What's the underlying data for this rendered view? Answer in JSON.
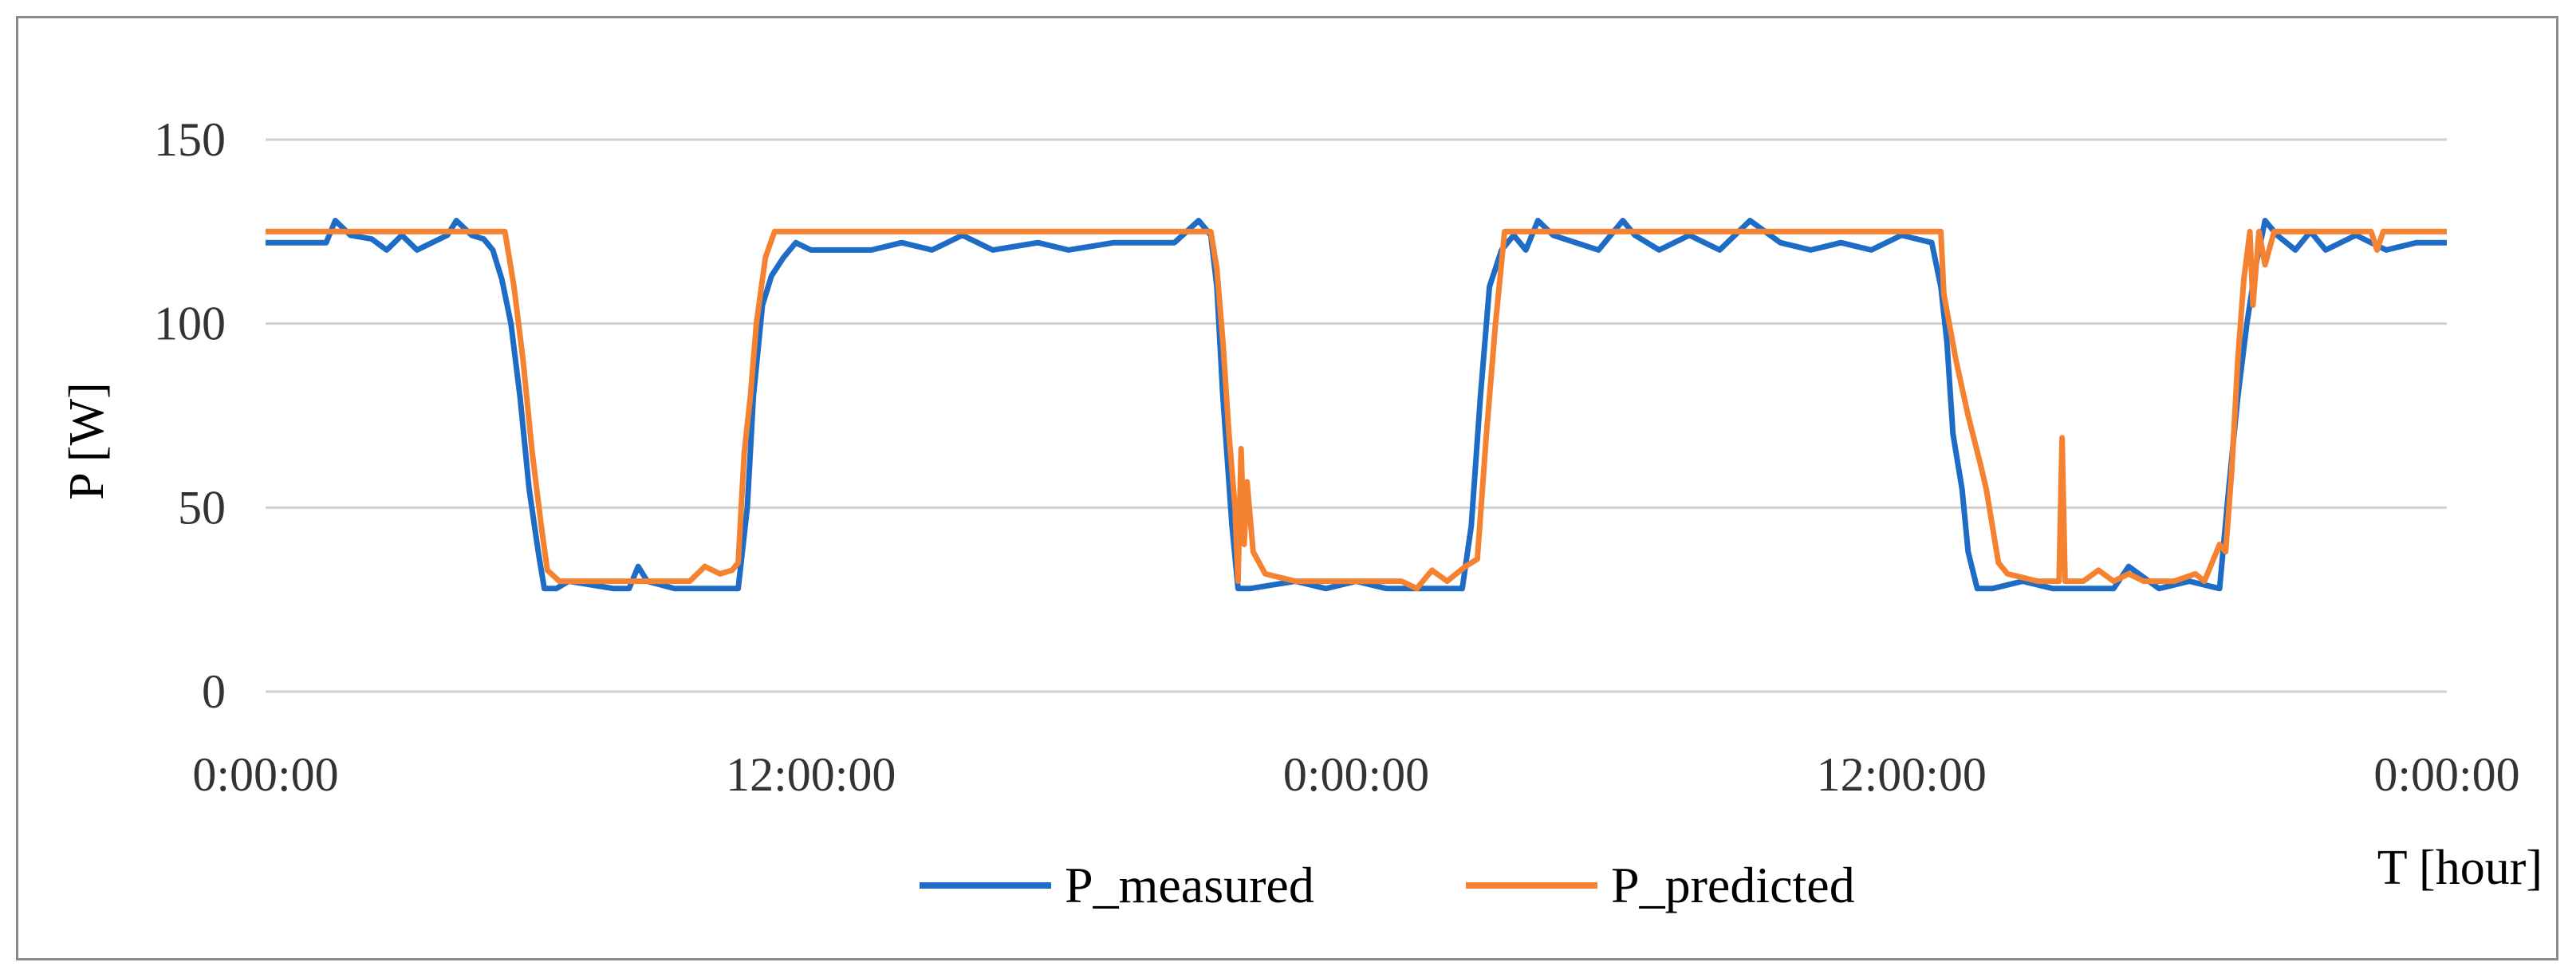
{
  "chart_data": {
    "type": "line",
    "title": "",
    "xlabel": "T [hour]",
    "ylabel": "P [W]",
    "ylim": [
      0,
      150
    ],
    "yticks": [
      "0",
      "50",
      "100",
      "150"
    ],
    "xticks": [
      "0:00:00",
      "12:00:00",
      "0:00:00",
      "12:00:00",
      "0:00:00"
    ],
    "xlim_hours": [
      0,
      72
    ],
    "grid": "horizontal",
    "legend_position": "bottom",
    "series": [
      {
        "name": "P_measured",
        "color": "#1f6cc7",
        "points": [
          [
            0,
            122
          ],
          [
            2.0,
            122
          ],
          [
            2.3,
            128
          ],
          [
            2.8,
            124
          ],
          [
            3.5,
            123
          ],
          [
            4.0,
            120
          ],
          [
            4.5,
            124
          ],
          [
            5.0,
            120
          ],
          [
            6.0,
            124
          ],
          [
            6.3,
            128
          ],
          [
            6.8,
            124
          ],
          [
            7.2,
            123
          ],
          [
            7.5,
            120
          ],
          [
            7.8,
            112
          ],
          [
            8.1,
            100
          ],
          [
            8.4,
            80
          ],
          [
            8.7,
            55
          ],
          [
            9.0,
            38
          ],
          [
            9.2,
            28
          ],
          [
            9.6,
            28
          ],
          [
            10.0,
            30
          ],
          [
            11.5,
            28
          ],
          [
            12.0,
            28
          ],
          [
            12.3,
            34
          ],
          [
            12.6,
            30
          ],
          [
            13.5,
            28
          ],
          [
            15.0,
            28
          ],
          [
            15.6,
            28
          ],
          [
            15.9,
            50
          ],
          [
            16.1,
            80
          ],
          [
            16.4,
            105
          ],
          [
            16.7,
            113
          ],
          [
            17.1,
            118
          ],
          [
            17.5,
            122
          ],
          [
            18.0,
            120
          ],
          [
            20.0,
            120
          ],
          [
            21.0,
            122
          ],
          [
            22.0,
            120
          ],
          [
            23.0,
            124
          ],
          [
            24.0,
            120
          ],
          [
            25.5,
            122
          ],
          [
            26.5,
            120
          ],
          [
            28.0,
            122
          ],
          [
            30.0,
            122
          ],
          [
            30.8,
            128
          ],
          [
            31.2,
            124
          ],
          [
            31.4,
            110
          ],
          [
            31.6,
            80
          ],
          [
            31.9,
            45
          ],
          [
            32.1,
            28
          ],
          [
            32.5,
            28
          ],
          [
            34.0,
            30
          ],
          [
            35.0,
            28
          ],
          [
            36.0,
            30
          ],
          [
            37.0,
            28
          ],
          [
            38.0,
            28
          ],
          [
            39.5,
            28
          ],
          [
            39.8,
            45
          ],
          [
            40.1,
            80
          ],
          [
            40.4,
            110
          ],
          [
            40.8,
            120
          ],
          [
            41.2,
            124
          ],
          [
            41.6,
            120
          ],
          [
            42.0,
            128
          ],
          [
            42.5,
            124
          ],
          [
            44.0,
            120
          ],
          [
            44.8,
            128
          ],
          [
            45.2,
            124
          ],
          [
            46.0,
            120
          ],
          [
            47.0,
            124
          ],
          [
            48.0,
            120
          ],
          [
            49.0,
            128
          ],
          [
            50.0,
            122
          ],
          [
            51.0,
            120
          ],
          [
            52.0,
            122
          ],
          [
            53.0,
            120
          ],
          [
            54.0,
            124
          ],
          [
            55.0,
            122
          ],
          [
            55.3,
            110
          ],
          [
            55.5,
            95
          ],
          [
            55.7,
            70
          ],
          [
            56.0,
            55
          ],
          [
            56.2,
            38
          ],
          [
            56.5,
            28
          ],
          [
            57.0,
            28
          ],
          [
            58.0,
            30
          ],
          [
            59.0,
            28
          ],
          [
            60.0,
            28
          ],
          [
            61.0,
            28
          ],
          [
            61.5,
            34
          ],
          [
            62.5,
            28
          ],
          [
            63.5,
            30
          ],
          [
            64.5,
            28
          ],
          [
            64.8,
            55
          ],
          [
            65.1,
            80
          ],
          [
            65.4,
            100
          ],
          [
            65.7,
            116
          ],
          [
            66.0,
            128
          ],
          [
            66.4,
            124
          ],
          [
            67.0,
            120
          ],
          [
            67.5,
            125
          ],
          [
            68.0,
            120
          ],
          [
            69.0,
            124
          ],
          [
            70.0,
            120
          ],
          [
            71.0,
            122
          ],
          [
            72.0,
            122
          ]
        ]
      },
      {
        "name": "P_predicted",
        "color": "#f58231",
        "points": [
          [
            0,
            125
          ],
          [
            7.9,
            125
          ],
          [
            8.2,
            110
          ],
          [
            8.5,
            90
          ],
          [
            8.8,
            65
          ],
          [
            9.1,
            45
          ],
          [
            9.3,
            33
          ],
          [
            9.7,
            30
          ],
          [
            10.5,
            30
          ],
          [
            12.0,
            30
          ],
          [
            13.0,
            30
          ],
          [
            14.0,
            30
          ],
          [
            14.5,
            34
          ],
          [
            15.0,
            32
          ],
          [
            15.4,
            33
          ],
          [
            15.6,
            35
          ],
          [
            15.8,
            65
          ],
          [
            16.0,
            80
          ],
          [
            16.2,
            100
          ],
          [
            16.5,
            118
          ],
          [
            16.8,
            125
          ],
          [
            20.0,
            125
          ],
          [
            24.0,
            125
          ],
          [
            28.0,
            125
          ],
          [
            31.2,
            125
          ],
          [
            31.4,
            115
          ],
          [
            31.6,
            95
          ],
          [
            31.8,
            70
          ],
          [
            32.0,
            50
          ],
          [
            32.1,
            30
          ],
          [
            32.2,
            66
          ],
          [
            32.3,
            40
          ],
          [
            32.4,
            57
          ],
          [
            32.6,
            38
          ],
          [
            33.0,
            32
          ],
          [
            34.0,
            30
          ],
          [
            35.5,
            30
          ],
          [
            36.5,
            30
          ],
          [
            37.5,
            30
          ],
          [
            38.0,
            28
          ],
          [
            38.5,
            33
          ],
          [
            39.0,
            30
          ],
          [
            39.6,
            34
          ],
          [
            40.0,
            36
          ],
          [
            40.3,
            70
          ],
          [
            40.6,
            100
          ],
          [
            40.9,
            125
          ],
          [
            45.0,
            125
          ],
          [
            50.0,
            125
          ],
          [
            55.3,
            125
          ],
          [
            55.4,
            108
          ],
          [
            55.8,
            90
          ],
          [
            56.2,
            75
          ],
          [
            56.6,
            62
          ],
          [
            56.8,
            55
          ],
          [
            57.0,
            45
          ],
          [
            57.2,
            35
          ],
          [
            57.5,
            32
          ],
          [
            58.5,
            30
          ],
          [
            59.0,
            30
          ],
          [
            59.2,
            30
          ],
          [
            59.3,
            69
          ],
          [
            59.4,
            30
          ],
          [
            60.0,
            30
          ],
          [
            60.5,
            33
          ],
          [
            61.0,
            30
          ],
          [
            61.5,
            32
          ],
          [
            62.0,
            30
          ],
          [
            63.0,
            30
          ],
          [
            63.7,
            32
          ],
          [
            64.0,
            30
          ],
          [
            64.3,
            36
          ],
          [
            64.5,
            40
          ],
          [
            64.7,
            38
          ],
          [
            64.9,
            60
          ],
          [
            65.1,
            90
          ],
          [
            65.3,
            112
          ],
          [
            65.5,
            125
          ],
          [
            65.6,
            105
          ],
          [
            65.8,
            125
          ],
          [
            66.0,
            116
          ],
          [
            66.3,
            125
          ],
          [
            69.5,
            125
          ],
          [
            69.7,
            120
          ],
          [
            69.9,
            125
          ],
          [
            72.0,
            125
          ]
        ]
      }
    ]
  }
}
